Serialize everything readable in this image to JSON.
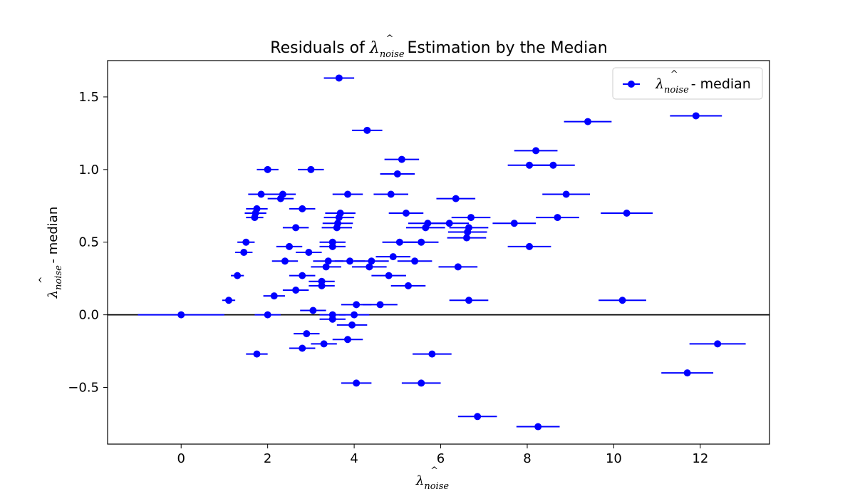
{
  "chart_data": {
    "type": "scatter",
    "title": {
      "prefix": "Residuals of ",
      "symbol": "λ",
      "subscript": "noise",
      "hat": "^",
      "suffix": " Estimation by the Median"
    },
    "xlabel": {
      "symbol": "λ",
      "subscript": "noise",
      "hat": "^",
      "suffix": ""
    },
    "ylabel": {
      "symbol": "λ",
      "subscript": "noise",
      "hat": "^",
      "suffix": " - median"
    },
    "xlim": [
      -1.7,
      13.6
    ],
    "ylim": [
      -0.89,
      1.75
    ],
    "xticks": [
      0,
      2,
      4,
      6,
      8,
      10,
      12
    ],
    "xtick_labels": [
      "0",
      "2",
      "4",
      "6",
      "8",
      "10",
      "12"
    ],
    "yticks": [
      -0.5,
      0.0,
      0.5,
      1.0,
      1.5
    ],
    "ytick_labels": [
      "−0.5",
      "0.0",
      "0.5",
      "1.0",
      "1.5"
    ],
    "reference_line_y": 0,
    "legend": {
      "position": "upper right",
      "symbol": "λ",
      "subscript": "noise",
      "hat": "^",
      "suffix": " - median"
    },
    "series": [
      {
        "name": "λnoise^ - median",
        "color": "#0000ff",
        "points": [
          {
            "x": 0.0,
            "y": 0.0,
            "xerr": 1.0
          },
          {
            "x": 1.1,
            "y": 0.1,
            "xerr": 0.15
          },
          {
            "x": 1.3,
            "y": 0.27,
            "xerr": 0.15
          },
          {
            "x": 1.45,
            "y": 0.43,
            "xerr": 0.2
          },
          {
            "x": 1.5,
            "y": 0.5,
            "xerr": 0.2
          },
          {
            "x": 1.7,
            "y": 0.67,
            "xerr": 0.2
          },
          {
            "x": 1.72,
            "y": 0.7,
            "xerr": 0.25
          },
          {
            "x": 1.75,
            "y": 0.73,
            "xerr": 0.25
          },
          {
            "x": 1.85,
            "y": 0.83,
            "xerr": 0.3
          },
          {
            "x": 1.75,
            "y": -0.27,
            "xerr": 0.25
          },
          {
            "x": 2.0,
            "y": 1.0,
            "xerr": 0.25
          },
          {
            "x": 2.0,
            "y": 0.0,
            "xerr": 0.3
          },
          {
            "x": 2.15,
            "y": 0.13,
            "xerr": 0.25
          },
          {
            "x": 2.3,
            "y": 0.8,
            "xerr": 0.3
          },
          {
            "x": 2.35,
            "y": 0.83,
            "xerr": 0.3
          },
          {
            "x": 2.4,
            "y": 0.37,
            "xerr": 0.3
          },
          {
            "x": 2.5,
            "y": 0.47,
            "xerr": 0.3
          },
          {
            "x": 2.65,
            "y": 0.17,
            "xerr": 0.3
          },
          {
            "x": 2.65,
            "y": 0.6,
            "xerr": 0.3
          },
          {
            "x": 2.8,
            "y": 0.73,
            "xerr": 0.3
          },
          {
            "x": 2.8,
            "y": 0.27,
            "xerr": 0.3
          },
          {
            "x": 2.8,
            "y": -0.23,
            "xerr": 0.3
          },
          {
            "x": 2.9,
            "y": -0.13,
            "xerr": 0.3
          },
          {
            "x": 2.95,
            "y": 0.43,
            "xerr": 0.3
          },
          {
            "x": 3.0,
            "y": 1.0,
            "xerr": 0.3
          },
          {
            "x": 3.05,
            "y": 0.03,
            "xerr": 0.3
          },
          {
            "x": 3.25,
            "y": 0.2,
            "xerr": 0.3
          },
          {
            "x": 3.25,
            "y": 0.23,
            "xerr": 0.3
          },
          {
            "x": 3.3,
            "y": -0.2,
            "xerr": 0.3
          },
          {
            "x": 3.35,
            "y": 0.33,
            "xerr": 0.35
          },
          {
            "x": 3.4,
            "y": 0.37,
            "xerr": 0.35
          },
          {
            "x": 3.5,
            "y": 0.47,
            "xerr": 0.3
          },
          {
            "x": 3.5,
            "y": 0.5,
            "xerr": 0.3
          },
          {
            "x": 3.5,
            "y": -0.03,
            "xerr": 0.3
          },
          {
            "x": 3.5,
            "y": 0.0,
            "xerr": 0.3
          },
          {
            "x": 3.6,
            "y": 0.6,
            "xerr": 0.35
          },
          {
            "x": 3.62,
            "y": 0.63,
            "xerr": 0.35
          },
          {
            "x": 3.65,
            "y": 0.67,
            "xerr": 0.35
          },
          {
            "x": 3.68,
            "y": 0.7,
            "xerr": 0.35
          },
          {
            "x": 3.65,
            "y": 1.63,
            "xerr": 0.35
          },
          {
            "x": 3.85,
            "y": 0.83,
            "xerr": 0.35
          },
          {
            "x": 3.85,
            "y": -0.17,
            "xerr": 0.35
          },
          {
            "x": 3.9,
            "y": 0.37,
            "xerr": 0.35
          },
          {
            "x": 3.95,
            "y": -0.07,
            "xerr": 0.35
          },
          {
            "x": 4.0,
            "y": 0.0,
            "xerr": 0.35
          },
          {
            "x": 4.05,
            "y": 0.07,
            "xerr": 0.35
          },
          {
            "x": 4.05,
            "y": -0.47,
            "xerr": 0.35
          },
          {
            "x": 4.3,
            "y": 1.27,
            "xerr": 0.35
          },
          {
            "x": 4.35,
            "y": 0.33,
            "xerr": 0.4
          },
          {
            "x": 4.4,
            "y": 0.37,
            "xerr": 0.4
          },
          {
            "x": 4.6,
            "y": 0.07,
            "xerr": 0.4
          },
          {
            "x": 4.8,
            "y": 0.27,
            "xerr": 0.4
          },
          {
            "x": 4.85,
            "y": 0.83,
            "xerr": 0.4
          },
          {
            "x": 4.9,
            "y": 0.4,
            "xerr": 0.4
          },
          {
            "x": 5.0,
            "y": 0.97,
            "xerr": 0.4
          },
          {
            "x": 5.05,
            "y": 0.5,
            "xerr": 0.4
          },
          {
            "x": 5.1,
            "y": 1.07,
            "xerr": 0.4
          },
          {
            "x": 5.2,
            "y": 0.7,
            "xerr": 0.4
          },
          {
            "x": 5.25,
            "y": 0.2,
            "xerr": 0.4
          },
          {
            "x": 5.4,
            "y": 0.37,
            "xerr": 0.4
          },
          {
            "x": 5.55,
            "y": 0.5,
            "xerr": 0.4
          },
          {
            "x": 5.55,
            "y": -0.47,
            "xerr": 0.45
          },
          {
            "x": 5.65,
            "y": 0.6,
            "xerr": 0.45
          },
          {
            "x": 5.7,
            "y": 0.63,
            "xerr": 0.45
          },
          {
            "x": 5.8,
            "y": -0.27,
            "xerr": 0.45
          },
          {
            "x": 6.2,
            "y": 0.63,
            "xerr": 0.45
          },
          {
            "x": 6.35,
            "y": 0.8,
            "xerr": 0.45
          },
          {
            "x": 6.4,
            "y": 0.33,
            "xerr": 0.45
          },
          {
            "x": 6.6,
            "y": 0.53,
            "xerr": 0.45
          },
          {
            "x": 6.62,
            "y": 0.57,
            "xerr": 0.45
          },
          {
            "x": 6.65,
            "y": 0.6,
            "xerr": 0.45
          },
          {
            "x": 6.65,
            "y": 0.1,
            "xerr": 0.45
          },
          {
            "x": 6.7,
            "y": 0.67,
            "xerr": 0.45
          },
          {
            "x": 6.85,
            "y": -0.7,
            "xerr": 0.45
          },
          {
            "x": 7.7,
            "y": 0.63,
            "xerr": 0.5
          },
          {
            "x": 8.05,
            "y": 0.47,
            "xerr": 0.5
          },
          {
            "x": 8.05,
            "y": 1.03,
            "xerr": 0.5
          },
          {
            "x": 8.2,
            "y": 1.13,
            "xerr": 0.5
          },
          {
            "x": 8.25,
            "y": -0.77,
            "xerr": 0.5
          },
          {
            "x": 8.6,
            "y": 1.03,
            "xerr": 0.5
          },
          {
            "x": 8.7,
            "y": 0.67,
            "xerr": 0.5
          },
          {
            "x": 8.9,
            "y": 0.83,
            "xerr": 0.55
          },
          {
            "x": 9.4,
            "y": 1.33,
            "xerr": 0.55
          },
          {
            "x": 10.2,
            "y": 0.1,
            "xerr": 0.55
          },
          {
            "x": 10.3,
            "y": 0.7,
            "xerr": 0.6
          },
          {
            "x": 11.7,
            "y": -0.4,
            "xerr": 0.6
          },
          {
            "x": 11.9,
            "y": 1.37,
            "xerr": 0.6
          },
          {
            "x": 12.4,
            "y": -0.2,
            "xerr": 0.65
          }
        ]
      }
    ]
  }
}
